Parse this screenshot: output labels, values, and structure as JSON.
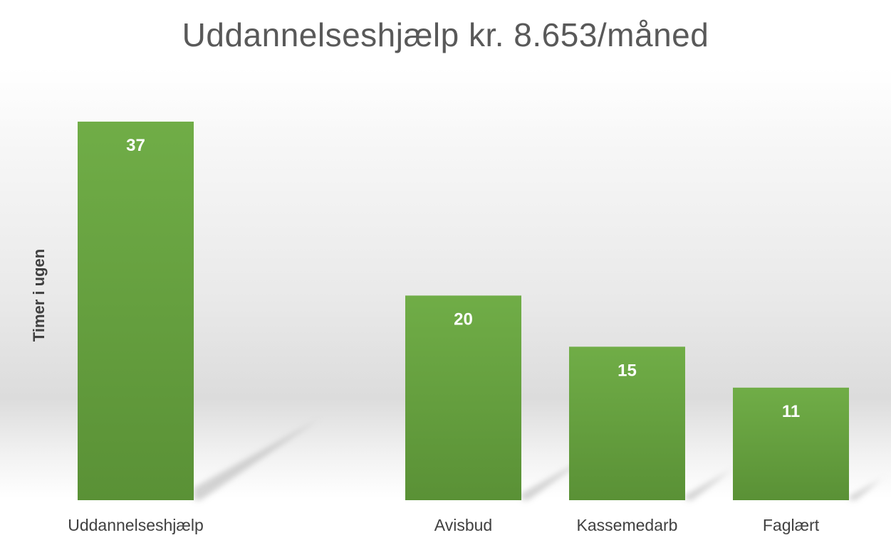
{
  "chart_data": {
    "type": "bar",
    "title": "Uddannelseshjælp kr. 8.653/måned",
    "xlabel": "",
    "ylabel": "Timer i ugen",
    "categories": [
      "Uddannelseshjælp",
      "Avisbud",
      "Kassemedarb",
      "Faglært"
    ],
    "values": [
      37,
      20,
      15,
      11
    ],
    "ylim": [
      0,
      40
    ],
    "grid": false,
    "legend": "none",
    "data_labels": "inside-top",
    "colors": {
      "bar_top": "#70ad47",
      "bar_bottom": "#5a9136",
      "shadow": "#b0b0b0",
      "title": "#595959",
      "axis_text": "#404040",
      "data_label": "#ffffff"
    }
  }
}
